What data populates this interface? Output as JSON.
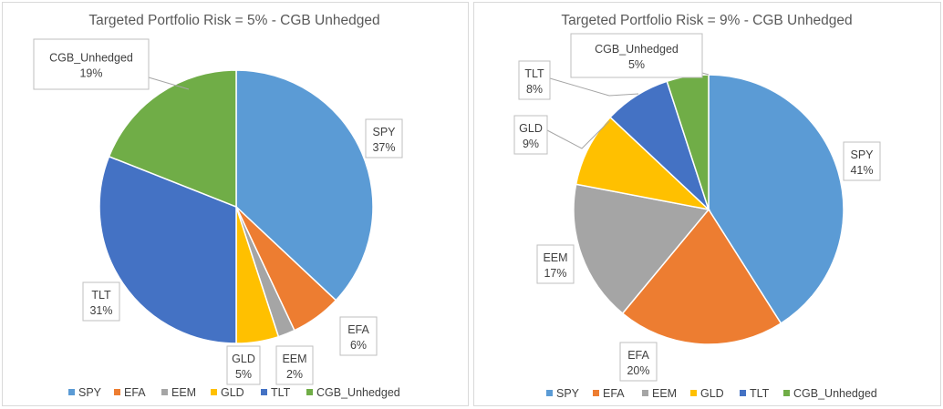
{
  "chart_data": [
    {
      "type": "pie",
      "title": "Targeted Portfolio Risk = 5% - CGB Unhedged",
      "categories": [
        "SPY",
        "EFA",
        "EEM",
        "GLD",
        "TLT",
        "CGB_Unhedged"
      ],
      "values": [
        37,
        6,
        2,
        5,
        31,
        19
      ],
      "value_labels": [
        "37%",
        "6%",
        "2%",
        "5%",
        "31%",
        "19%"
      ],
      "colors": [
        "#5B9BD5",
        "#ED7D31",
        "#A5A5A5",
        "#FFC000",
        "#4472C4",
        "#70AD47"
      ],
      "legend": "bottom"
    },
    {
      "type": "pie",
      "title": "Targeted Portfolio Risk = 9% - CGB Unhedged",
      "categories": [
        "SPY",
        "EFA",
        "EEM",
        "GLD",
        "TLT",
        "CGB_Unhedged"
      ],
      "values": [
        41,
        20,
        17,
        9,
        8,
        5
      ],
      "value_labels": [
        "41%",
        "20%",
        "17%",
        "9%",
        "8%",
        "5%"
      ],
      "colors": [
        "#5B9BD5",
        "#ED7D31",
        "#A5A5A5",
        "#FFC000",
        "#4472C4",
        "#70AD47"
      ],
      "legend": "bottom"
    }
  ]
}
